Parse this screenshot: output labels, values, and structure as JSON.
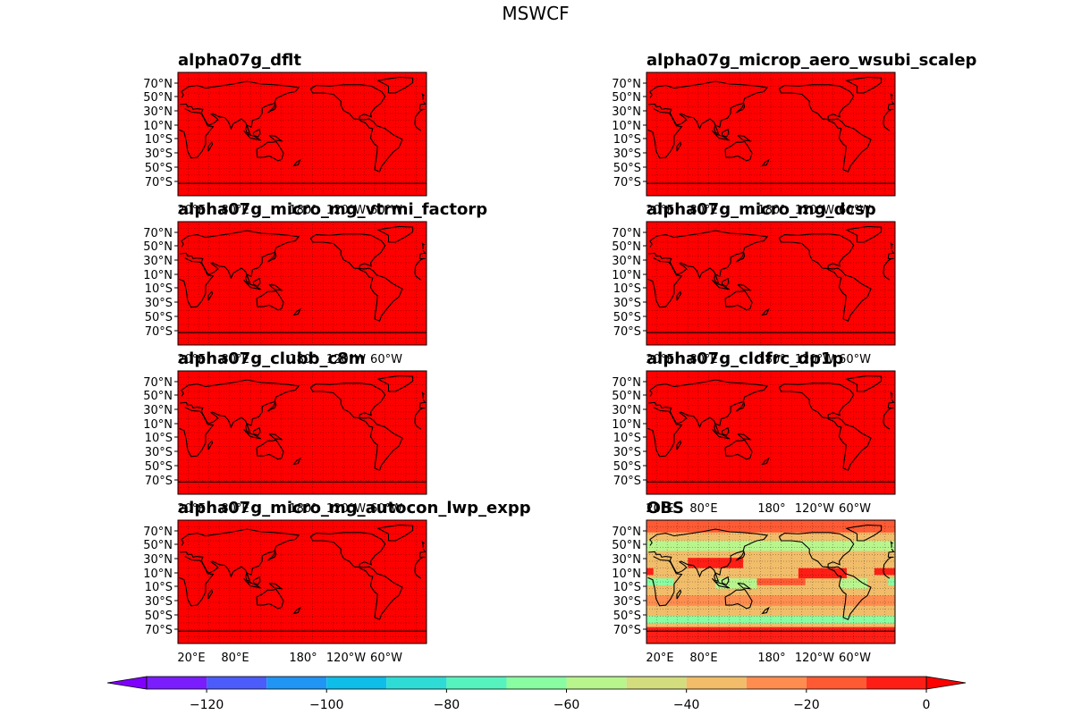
{
  "figure": {
    "title": "MSWCF"
  },
  "chart_data": [
    {
      "type": "heatmap",
      "title": "alpha07g_dflt",
      "uniform_value": 0,
      "lat_ticks": [
        "70°N",
        "50°N",
        "30°N",
        "10°N",
        "10°S",
        "30°S",
        "50°S",
        "70°S"
      ],
      "lon_ticks": [
        "20°E",
        "80°E",
        "180°",
        "120°W",
        "60°W"
      ],
      "grid": true
    },
    {
      "type": "heatmap",
      "title": "alpha07g_microp_aero_wsubi_scalep",
      "uniform_value": 0,
      "lat_ticks": [
        "70°N",
        "50°N",
        "30°N",
        "10°N",
        "10°S",
        "30°S",
        "50°S",
        "70°S"
      ],
      "lon_ticks": [
        "20°E",
        "80°E",
        "180°",
        "120°W",
        "60°W"
      ],
      "grid": true
    },
    {
      "type": "heatmap",
      "title": "alpha07g_micro_mg_vtrmi_factorp",
      "uniform_value": 0,
      "lat_ticks": [
        "70°N",
        "50°N",
        "30°N",
        "10°N",
        "10°S",
        "30°S",
        "50°S",
        "70°S"
      ],
      "lon_ticks": [
        "20°E",
        "80°E",
        "180°",
        "120°W",
        "60°W"
      ],
      "grid": true
    },
    {
      "type": "heatmap",
      "title": "alpha07g_micro_mg_dcsp",
      "uniform_value": 0,
      "lat_ticks": [
        "70°N",
        "50°N",
        "30°N",
        "10°N",
        "10°S",
        "30°S",
        "50°S",
        "70°S"
      ],
      "lon_ticks": [
        "20°E",
        "80°E",
        "180°",
        "120°W",
        "60°W"
      ],
      "grid": true
    },
    {
      "type": "heatmap",
      "title": "alpha07g_clubb_c8m",
      "uniform_value": 0,
      "lat_ticks": [
        "70°N",
        "50°N",
        "30°N",
        "10°N",
        "10°S",
        "30°S",
        "50°S",
        "70°S"
      ],
      "lon_ticks": [
        "20°E",
        "80°E",
        "180°",
        "120°W",
        "60°W"
      ],
      "grid": true
    },
    {
      "type": "heatmap",
      "title": "alpha07g_cldfrc_dp1p",
      "uniform_value": 0,
      "lat_ticks": [
        "70°N",
        "50°N",
        "30°N",
        "10°N",
        "10°S",
        "30°S",
        "50°S",
        "70°S"
      ],
      "lon_ticks": [
        "20°E",
        "80°E",
        "180°",
        "120°W",
        "60°W"
      ],
      "grid": true
    },
    {
      "type": "heatmap",
      "title": "alpha07g_micro_mg_autocon_lwp_expp",
      "uniform_value": 0,
      "lat_ticks": [
        "70°N",
        "50°N",
        "30°N",
        "10°N",
        "10°S",
        "30°S",
        "50°S",
        "70°S"
      ],
      "lon_ticks": [
        "20°E",
        "80°E",
        "180°",
        "120°W",
        "60°W"
      ],
      "grid": true
    },
    {
      "type": "heatmap",
      "title": "OBS",
      "lat_ticks": [
        "70°N",
        "50°N",
        "30°N",
        "10°N",
        "10°S",
        "30°S",
        "50°S",
        "70°S"
      ],
      "lon_ticks": [
        "20°E",
        "80°E",
        "180°",
        "120°W",
        "60°W"
      ],
      "grid": true,
      "background_value": -40,
      "regions": [
        {
          "value": -5,
          "lon": [
            60,
            140
          ],
          "lat": [
            20,
            35
          ]
        },
        {
          "value": -5,
          "lon": [
            -140,
            -70
          ],
          "lat": [
            5,
            20
          ]
        },
        {
          "value": -5,
          "lon": [
            -30,
            10
          ],
          "lat": [
            10,
            20
          ]
        },
        {
          "value": -15,
          "lon": [
            150,
            230
          ],
          "lat": [
            -5,
            5
          ]
        },
        {
          "value": -25,
          "lon": [
            -180,
            180
          ],
          "lat": [
            -35,
            -20
          ]
        },
        {
          "value": -35,
          "lon": [
            30,
            60
          ],
          "lat": [
            -15,
            5
          ]
        },
        {
          "value": -65,
          "lon": [
            -180,
            180
          ],
          "lat": [
            -60,
            -50
          ]
        },
        {
          "value": -55,
          "lon": [
            -180,
            180
          ],
          "lat": [
            45,
            60
          ]
        },
        {
          "value": -70,
          "lon": [
            -10,
            40
          ],
          "lat": [
            -5,
            5
          ]
        },
        {
          "value": -60,
          "lon": [
            100,
            160
          ],
          "lat": [
            -10,
            5
          ]
        },
        {
          "value": -60,
          "lon": [
            -80,
            -40
          ],
          "lat": [
            -10,
            5
          ]
        },
        {
          "value": -5,
          "lon": [
            -180,
            180
          ],
          "lat": [
            -90,
            -66
          ]
        },
        {
          "value": -20,
          "lon": [
            -180,
            180
          ],
          "lat": [
            72,
            90
          ]
        }
      ]
    }
  ],
  "colorbar": {
    "ticks": [
      "−120",
      "−100",
      "−80",
      "−60",
      "−40",
      "−20",
      "0"
    ],
    "bounds": [
      -130,
      0
    ],
    "levels": [
      -130,
      -120,
      -110,
      -100,
      -90,
      -80,
      -70,
      -60,
      -50,
      -40,
      -30,
      -20,
      -10,
      0
    ],
    "colors": [
      "#7a1dfc",
      "#4b5cfa",
      "#2095f3",
      "#0ebde8",
      "#2fdcd5",
      "#56f3be",
      "#88fda2",
      "#b8f58d",
      "#d3dd7e",
      "#f1bd6a",
      "#fe8d4f",
      "#ff5a33",
      "#ff1e16"
    ],
    "extend_low_color": "#8000ff",
    "extend_high_color": "#ff0000"
  }
}
